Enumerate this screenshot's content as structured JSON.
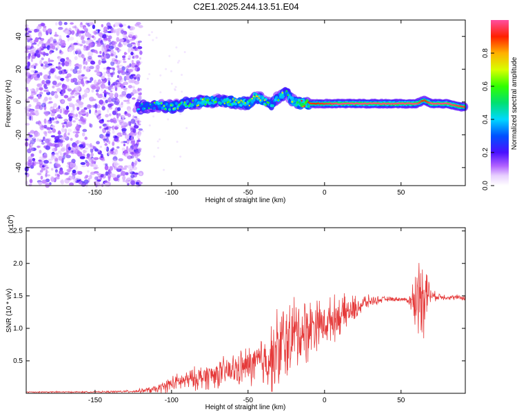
{
  "title": "C2E1.2025.244.13.51.E04",
  "colors": {
    "snr_line": "#e53a3a",
    "ridge": "#dd2020",
    "colormap": [
      "#ffffff",
      "#e8d8ff",
      "#8a2be2",
      "#3333ff",
      "#00c8ff",
      "#00ff66",
      "#ffff00",
      "#ff8800",
      "#ff0000",
      "#ff66cc"
    ]
  },
  "chart_data": [
    {
      "type": "heatmap",
      "name": "spectrogram",
      "xlabel": "Height of straight line (km)",
      "ylabel": "Frequency (Hz)",
      "xlim": [
        -195,
        92
      ],
      "ylim": [
        -51,
        50
      ],
      "xticks": [
        -150,
        -100,
        -50,
        0,
        50
      ],
      "yticks": [
        -40,
        -20,
        0,
        20,
        40
      ],
      "noise_region": {
        "x": [
          -195,
          -120
        ],
        "y": [
          -51,
          48
        ]
      },
      "ridge": {
        "x": [
          -120,
          -110,
          -100,
          -90,
          -80,
          -70,
          -60,
          -50,
          -45,
          -40,
          -35,
          -30,
          -25,
          -20,
          -15,
          -10,
          0,
          10,
          20,
          30,
          40,
          50,
          60,
          65,
          70,
          80,
          90
        ],
        "y": [
          -3,
          -2,
          -3,
          -1,
          0,
          1,
          0,
          -1,
          3,
          1,
          -2,
          3,
          6,
          0,
          -1,
          -1,
          -1,
          -1,
          -1,
          -1,
          -1,
          -1,
          -1,
          1,
          -1,
          -1,
          -3
        ],
        "amplitude": [
          0.35,
          0.45,
          0.5,
          0.5,
          0.55,
          0.5,
          0.55,
          0.6,
          0.55,
          0.55,
          0.5,
          0.55,
          0.5,
          0.6,
          0.7,
          0.8,
          0.85,
          0.9,
          0.9,
          0.9,
          0.9,
          0.9,
          0.9,
          0.8,
          0.9,
          0.9,
          0.85
        ]
      },
      "colorbar": {
        "label": "Normalized spectral amplitude",
        "range": [
          0,
          1
        ],
        "ticks": [
          "0.0",
          "0.2",
          "0.4",
          "0.6",
          "0.8"
        ]
      }
    },
    {
      "type": "line",
      "name": "snr",
      "xlabel": "Height of straight line (km)",
      "ylabel": "SNR (10 * v/v)",
      "scale_label": "(x10",
      "scale_exp": "4",
      "xlim": [
        -195,
        92
      ],
      "ylim": [
        0,
        2.55
      ],
      "xticks": [
        -150,
        -100,
        -50,
        0,
        50
      ],
      "yticks": [
        "0.5",
        "1.0",
        "1.5",
        "2.0",
        "2.5"
      ],
      "series": [
        {
          "name": "SNR",
          "x": [
            -195,
            -150,
            -125,
            -110,
            -105,
            -100,
            -90,
            -80,
            -70,
            -60,
            -50,
            -45,
            -40,
            -35,
            -30,
            -28,
            -25,
            -20,
            -15,
            -10,
            -5,
            0,
            5,
            10,
            15,
            20,
            25,
            30,
            40,
            50,
            55,
            58,
            60,
            62,
            65,
            67,
            70,
            80,
            92
          ],
          "mean": [
            0.02,
            0.02,
            0.03,
            0.06,
            0.1,
            0.15,
            0.2,
            0.25,
            0.3,
            0.35,
            0.42,
            0.45,
            0.5,
            0.55,
            0.65,
            0.7,
            0.8,
            0.9,
            0.95,
            1.0,
            1.1,
            1.05,
            1.15,
            1.2,
            1.25,
            1.3,
            1.38,
            1.42,
            1.45,
            1.45,
            1.43,
            1.4,
            1.45,
            1.5,
            1.6,
            1.55,
            1.5,
            1.48,
            1.47
          ],
          "amp": [
            0.01,
            0.01,
            0.02,
            0.06,
            0.1,
            0.12,
            0.15,
            0.2,
            0.22,
            0.25,
            0.3,
            0.35,
            0.45,
            0.5,
            0.7,
            0.8,
            0.6,
            0.6,
            0.55,
            0.5,
            0.4,
            0.3,
            0.35,
            0.3,
            0.25,
            0.2,
            0.15,
            0.08,
            0.04,
            0.03,
            0.04,
            0.4,
            0.5,
            0.6,
            0.7,
            0.4,
            0.08,
            0.04,
            0.04
          ]
        }
      ]
    }
  ]
}
